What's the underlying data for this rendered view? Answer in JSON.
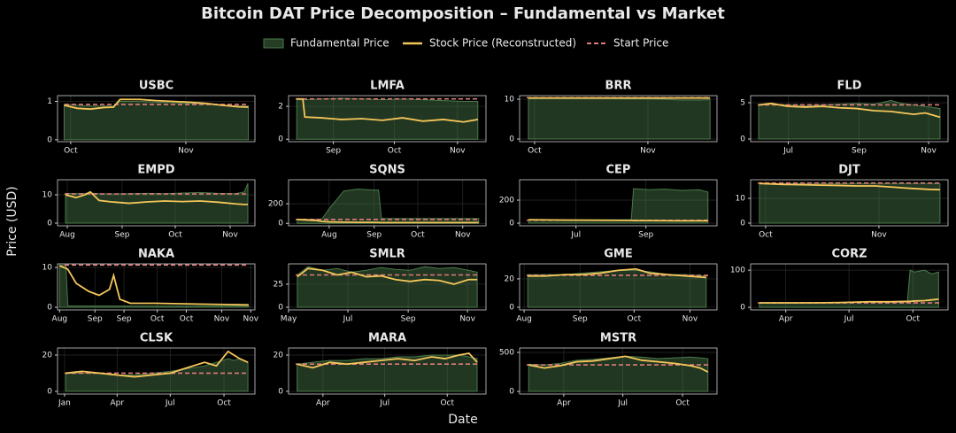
{
  "title": "Bitcoin DAT Price Decomposition – Fundamental vs Market",
  "xlabel": "Date",
  "ylabel": "Price (USD)",
  "legend": [
    {
      "name": "Fundamental Price",
      "color": "#4a7a4a"
    },
    {
      "name": "Stock Price (Reconstructed)",
      "color": "#f5c65a"
    },
    {
      "name": "Start Price",
      "color": "#e07b7b"
    }
  ],
  "chart_data": [
    {
      "type": "line",
      "title": "USBC",
      "x": [
        2,
        6,
        10,
        14,
        17,
        19,
        25,
        30,
        35,
        40,
        45,
        50,
        55,
        58
      ],
      "fundamental": [
        0.92,
        0.9,
        0.88,
        0.88,
        0.88,
        1.0,
        1.0,
        0.98,
        0.97,
        0.95,
        0.93,
        0.9,
        0.88,
        0.88
      ],
      "stock": [
        0.9,
        0.82,
        0.8,
        0.84,
        0.85,
        1.05,
        1.05,
        1.02,
        1.0,
        0.98,
        0.95,
        0.9,
        0.86,
        0.85
      ],
      "start_price": 0.92,
      "xlim": [
        0,
        60
      ],
      "ylim": [
        -0.05,
        1.15
      ],
      "yticks": [
        0,
        1
      ],
      "xticks": [
        {
          "value": 4,
          "label": "Oct"
        },
        {
          "value": 39,
          "label": "Nov"
        }
      ]
    },
    {
      "type": "line",
      "title": "LMFA",
      "x": [
        13,
        16,
        17,
        25,
        35,
        45,
        55,
        65,
        75,
        85,
        95,
        102
      ],
      "fundamental": [
        2.4,
        2.4,
        2.4,
        2.45,
        2.5,
        2.45,
        2.4,
        2.45,
        2.4,
        2.35,
        2.3,
        2.3
      ],
      "stock": [
        2.45,
        2.45,
        1.35,
        1.3,
        1.2,
        1.25,
        1.15,
        1.3,
        1.1,
        1.2,
        1.05,
        1.2
      ],
      "start_price": 2.45,
      "xlim": [
        9,
        106
      ],
      "ylim": [
        -0.15,
        2.65
      ],
      "yticks": [
        0,
        2
      ],
      "xticks": [
        {
          "value": 31,
          "label": "Sep"
        },
        {
          "value": 61,
          "label": "Oct"
        },
        {
          "value": 92,
          "label": "Nov"
        }
      ]
    },
    {
      "type": "line",
      "title": "BRR",
      "x": [
        -1.7,
        5,
        10,
        15,
        20,
        25,
        30,
        35,
        40,
        45,
        48
      ],
      "fundamental": [
        10.2,
        10.2,
        10.2,
        10.2,
        10.2,
        10.1,
        10.1,
        10.0,
        9.8,
        9.8,
        9.9
      ],
      "stock": [
        10.3,
        10.3,
        10.3,
        10.3,
        10.3,
        10.3,
        10.3,
        10.3,
        10.3,
        10.3,
        10.3
      ],
      "start_price": 10.4,
      "xlim": [
        -4.1,
        49.9
      ],
      "ylim": [
        -0.67,
        10.9
      ],
      "yticks": [
        0,
        10
      ],
      "xticks": [
        {
          "value": 0,
          "label": "Oct"
        },
        {
          "value": 31,
          "label": "Nov"
        }
      ]
    },
    {
      "type": "line",
      "title": "FLD",
      "x": [
        4,
        15,
        30,
        45,
        60,
        75,
        90,
        105,
        120,
        130,
        140,
        150,
        163
      ],
      "fundamental": [
        4.7,
        4.8,
        4.7,
        4.6,
        4.7,
        4.8,
        4.9,
        4.8,
        5.3,
        4.9,
        4.7,
        4.5,
        4.2
      ],
      "stock": [
        4.7,
        4.9,
        4.5,
        4.4,
        4.5,
        4.3,
        4.2,
        3.9,
        3.8,
        3.6,
        3.4,
        3.6,
        3.0
      ],
      "start_price": 4.7,
      "xlim": [
        -3,
        170
      ],
      "ylim": [
        -0.37,
        5.98
      ],
      "yticks": [
        0,
        5
      ],
      "xticks": [
        {
          "value": 30,
          "label": "Jul"
        },
        {
          "value": 92,
          "label": "Sep"
        },
        {
          "value": 153,
          "label": "Nov"
        }
      ]
    },
    {
      "type": "line",
      "title": "EMPD",
      "x": [
        -1,
        5,
        10,
        13,
        18,
        25,
        35,
        45,
        55,
        65,
        75,
        85,
        95,
        100,
        102
      ],
      "fundamental": [
        10.5,
        10.4,
        10.5,
        10.6,
        10.4,
        10.3,
        10.4,
        10.5,
        10.4,
        10.6,
        10.8,
        10.5,
        10.4,
        11,
        14
      ],
      "stock": [
        10,
        9,
        10,
        11,
        8,
        7.5,
        7,
        7.5,
        7.8,
        7.6,
        7.8,
        7.4,
        6.8,
        6.6,
        6.6
      ],
      "start_price": 10.3,
      "xlim": [
        -5.5,
        106
      ],
      "ylim": [
        -0.94,
        15.3
      ],
      "yticks": [
        0,
        10
      ],
      "xticks": [
        {
          "value": 0,
          "label": "Aug"
        },
        {
          "value": 31,
          "label": "Sep"
        },
        {
          "value": 61,
          "label": "Oct"
        },
        {
          "value": 92,
          "label": "Nov"
        }
      ]
    },
    {
      "type": "line",
      "title": "SQNS",
      "x": [
        -22,
        -10,
        -5,
        0,
        10,
        20,
        30,
        34,
        36,
        50,
        70,
        90,
        103
      ],
      "fundamental": [
        40,
        40,
        45,
        150,
        330,
        350,
        340,
        340,
        50,
        50,
        50,
        50,
        50
      ],
      "stock": [
        40,
        30,
        20,
        15,
        12,
        10,
        10,
        9,
        8,
        8,
        8,
        8,
        8
      ],
      "start_price": 40,
      "xlim": [
        -28,
        108
      ],
      "ylim": [
        -25,
        445
      ],
      "yticks": [
        0,
        200
      ],
      "xticks": [
        {
          "value": 0,
          "label": "Aug"
        },
        {
          "value": 31,
          "label": "Sep"
        },
        {
          "value": 61,
          "label": "Oct"
        },
        {
          "value": 92,
          "label": "Nov"
        }
      ]
    },
    {
      "type": "line",
      "title": "CEP",
      "x": [
        19,
        40,
        60,
        80,
        100,
        110,
        112,
        125,
        140,
        155,
        170,
        178
      ],
      "fundamental": [
        30,
        28,
        30,
        30,
        30,
        30,
        300,
        290,
        295,
        285,
        290,
        270
      ],
      "stock": [
        30,
        28,
        26,
        25,
        24,
        24,
        22,
        22,
        21,
        20,
        20,
        20
      ],
      "start_price": 25,
      "xlim": [
        11,
        186
      ],
      "ylim": [
        -23,
        377
      ],
      "yticks": [
        0,
        200
      ],
      "xticks": [
        {
          "value": 61,
          "label": "Jul"
        },
        {
          "value": 123,
          "label": "Sep"
        }
      ]
    },
    {
      "type": "line",
      "title": "DJT",
      "x": [
        -1.7,
        5,
        10,
        15,
        20,
        25,
        30,
        35,
        40,
        45,
        47.7
      ],
      "fundamental": [
        16,
        16,
        16,
        16,
        16,
        16,
        16,
        16,
        16,
        16,
        16
      ],
      "stock": [
        16,
        15.6,
        15.5,
        15.3,
        15.2,
        15,
        15,
        14.5,
        14,
        13.6,
        13.5
      ],
      "start_price": 16.2,
      "xlim": [
        -4.1,
        49.9
      ],
      "ylim": [
        -1.07,
        17.5
      ],
      "yticks": [
        0,
        10
      ],
      "xticks": [
        {
          "value": 0,
          "label": "Oct"
        },
        {
          "value": 31,
          "label": "Nov"
        }
      ]
    },
    {
      "type": "line",
      "title": "NAKA",
      "x": [
        14,
        15,
        17,
        18,
        22,
        28,
        33,
        38,
        40,
        43,
        48,
        60,
        80,
        105
      ],
      "fundamental": [
        10.5,
        10.5,
        10.5,
        0.3,
        0.3,
        0.3,
        0.3,
        0.3,
        0.3,
        0.3,
        0.3,
        0.3,
        0.3,
        0.3
      ],
      "stock": [
        10.5,
        10.2,
        9.8,
        9.5,
        6,
        4,
        3,
        4.5,
        8,
        2,
        1,
        1,
        0.8,
        0.6
      ],
      "start_price": 10.6,
      "xlim": [
        13,
        108
      ],
      "ylim": [
        -0.67,
        10.9
      ],
      "yticks": [
        0,
        10
      ],
      "xticks": [
        {
          "value": 14,
          "label": "Aug"
        },
        {
          "value": 31,
          "label": "Sep"
        },
        {
          "value": 45,
          "label": "Sep"
        },
        {
          "value": 61,
          "label": "Oct"
        },
        {
          "value": 75,
          "label": "Oct"
        },
        {
          "value": 92,
          "label": "Nov"
        },
        {
          "value": 106,
          "label": "Nov"
        }
      ]
    },
    {
      "type": "line",
      "title": "SMLR",
      "x": [
        9,
        20,
        35,
        50,
        65,
        80,
        95,
        110,
        125,
        140,
        155,
        170,
        185,
        194
      ],
      "fundamental": [
        35,
        44,
        40,
        42,
        38,
        40,
        43,
        41,
        40,
        44,
        42,
        43,
        40,
        38
      ],
      "stock": [
        33,
        42,
        40,
        35,
        38,
        33,
        34,
        30,
        28,
        30,
        29,
        25,
        30,
        30
      ],
      "start_price": 35,
      "xlim": [
        0,
        203
      ],
      "ylim": [
        -2.9,
        47
      ],
      "yticks": [
        0,
        25
      ],
      "xticks": [
        {
          "value": 0,
          "label": "May"
        },
        {
          "value": 61,
          "label": "Jul"
        },
        {
          "value": 123,
          "label": "Sep"
        },
        {
          "value": 184,
          "label": "Nov"
        }
      ]
    },
    {
      "type": "line",
      "title": "GME",
      "x": [
        2,
        12,
        22,
        32,
        42,
        52,
        62,
        70,
        80,
        90,
        101
      ],
      "fundamental": [
        23,
        23,
        23,
        24,
        25,
        26,
        26,
        25,
        23,
        23,
        22
      ],
      "stock": [
        22,
        22,
        23,
        23,
        24,
        26,
        27,
        24,
        23,
        22,
        21
      ],
      "start_price": 22.5,
      "xlim": [
        -2.5,
        107
      ],
      "ylim": [
        -1.9,
        30.6
      ],
      "yticks": [
        0,
        20
      ],
      "xticks": [
        {
          "value": 0,
          "label": "Aug"
        },
        {
          "value": 31,
          "label": "Sep"
        },
        {
          "value": 61,
          "label": "Oct"
        },
        {
          "value": 92,
          "label": "Nov"
        }
      ]
    },
    {
      "type": "line",
      "title": "CORZ",
      "x": [
        52,
        90,
        130,
        170,
        210,
        240,
        265,
        269,
        275,
        290,
        300,
        310
      ],
      "fundamental": [
        12,
        12,
        12,
        13,
        14,
        14,
        14,
        100,
        95,
        100,
        90,
        95
      ],
      "stock": [
        12,
        12,
        12,
        13,
        15,
        15,
        16,
        16,
        17,
        18,
        20,
        22
      ],
      "start_price": 12,
      "xlim": [
        39.4,
        323.6
      ],
      "ylim": [
        -7,
        117
      ],
      "yticks": [
        0,
        100
      ],
      "xticks": [
        {
          "value": 90,
          "label": "Apr"
        },
        {
          "value": 181,
          "label": "Jul"
        },
        {
          "value": 273,
          "label": "Oct"
        }
      ]
    },
    {
      "type": "line",
      "title": "CLSK",
      "x": [
        2,
        30,
        60,
        90,
        120,
        150,
        181,
        200,
        220,
        240,
        260,
        280,
        290,
        300,
        314
      ],
      "fundamental": [
        10,
        10,
        10,
        9,
        9,
        10,
        11,
        12,
        13,
        14,
        16,
        18,
        17,
        18,
        16
      ],
      "stock": [
        10,
        11,
        10,
        9,
        8,
        9,
        10,
        12,
        14,
        16,
        14,
        22,
        20,
        18,
        16
      ],
      "start_price": 10,
      "xlim": [
        -12,
        326
      ],
      "ylim": [
        -1.5,
        23.9
      ],
      "yticks": [
        0,
        20
      ],
      "xticks": [
        {
          "value": 0,
          "label": "Jan"
        },
        {
          "value": 90,
          "label": "Apr"
        },
        {
          "value": 181,
          "label": "Jul"
        },
        {
          "value": 273,
          "label": "Oct"
        }
      ]
    },
    {
      "type": "line",
      "title": "MARA",
      "x": [
        52,
        75,
        100,
        125,
        150,
        175,
        200,
        225,
        250,
        270,
        290,
        305,
        317
      ],
      "fundamental": [
        15,
        16,
        17,
        17,
        18,
        18,
        19,
        19,
        20,
        20,
        20,
        19,
        18
      ],
      "stock": [
        15,
        13,
        16,
        15,
        16,
        17,
        18,
        17,
        19,
        18,
        20,
        21,
        16
      ],
      "start_price": 15,
      "xlim": [
        39.4,
        330
      ],
      "ylim": [
        -1.5,
        23.9
      ],
      "yticks": [
        0,
        20
      ],
      "xticks": [
        {
          "value": 90,
          "label": "Apr"
        },
        {
          "value": 181,
          "label": "Jul"
        },
        {
          "value": 273,
          "label": "Oct"
        }
      ]
    },
    {
      "type": "line",
      "title": "MSTR",
      "x": [
        36,
        60,
        85,
        110,
        135,
        160,
        185,
        210,
        235,
        260,
        285,
        300,
        312
      ],
      "fundamental": [
        350,
        340,
        360,
        400,
        410,
        430,
        450,
        440,
        420,
        430,
        440,
        430,
        420
      ],
      "stock": [
        340,
        300,
        330,
        380,
        390,
        420,
        450,
        400,
        380,
        360,
        330,
        300,
        250
      ],
      "start_price": 340,
      "xlim": [
        22,
        326
      ],
      "ylim": [
        -34,
        557
      ],
      "yticks": [
        0,
        500
      ],
      "xticks": [
        {
          "value": 90,
          "label": "Apr"
        },
        {
          "value": 181,
          "label": "Jul"
        },
        {
          "value": 273,
          "label": "Oct"
        }
      ]
    }
  ]
}
